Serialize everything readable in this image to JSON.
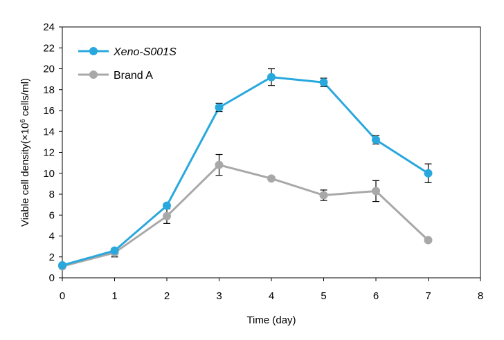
{
  "chart_data": {
    "type": "line",
    "xlabel": "Time (day)",
    "ylabel": "Viable cell density(×10",
    "ylabel_sup": "6",
    "ylabel_suffix": " cells/ml)",
    "xlim": [
      0,
      8
    ],
    "ylim": [
      0,
      24
    ],
    "xticks": [
      0,
      1,
      2,
      3,
      4,
      5,
      6,
      7,
      8
    ],
    "yticks": [
      0,
      2,
      4,
      6,
      8,
      10,
      12,
      14,
      16,
      18,
      20,
      22,
      24
    ],
    "grid": false,
    "legend_position": "top-left",
    "series": [
      {
        "name": "Xeno-S001S",
        "color": "#29a8de",
        "x": [
          0,
          1,
          2,
          3,
          4,
          5,
          6,
          7
        ],
        "y": [
          1.2,
          2.6,
          6.9,
          16.3,
          19.2,
          18.7,
          13.2,
          10.0
        ],
        "error": [
          0.1,
          0.2,
          0.2,
          0.4,
          0.8,
          0.4,
          0.4,
          0.9
        ]
      },
      {
        "name": "Brand A",
        "color": "#a8a8a8",
        "x": [
          0,
          1,
          2,
          3,
          4,
          5,
          6,
          7
        ],
        "y": [
          1.1,
          2.4,
          5.9,
          10.8,
          9.5,
          7.9,
          8.3,
          3.6
        ],
        "error": [
          0.1,
          0.4,
          0.7,
          1.0,
          0.1,
          0.5,
          1.0,
          0.1
        ]
      }
    ]
  }
}
